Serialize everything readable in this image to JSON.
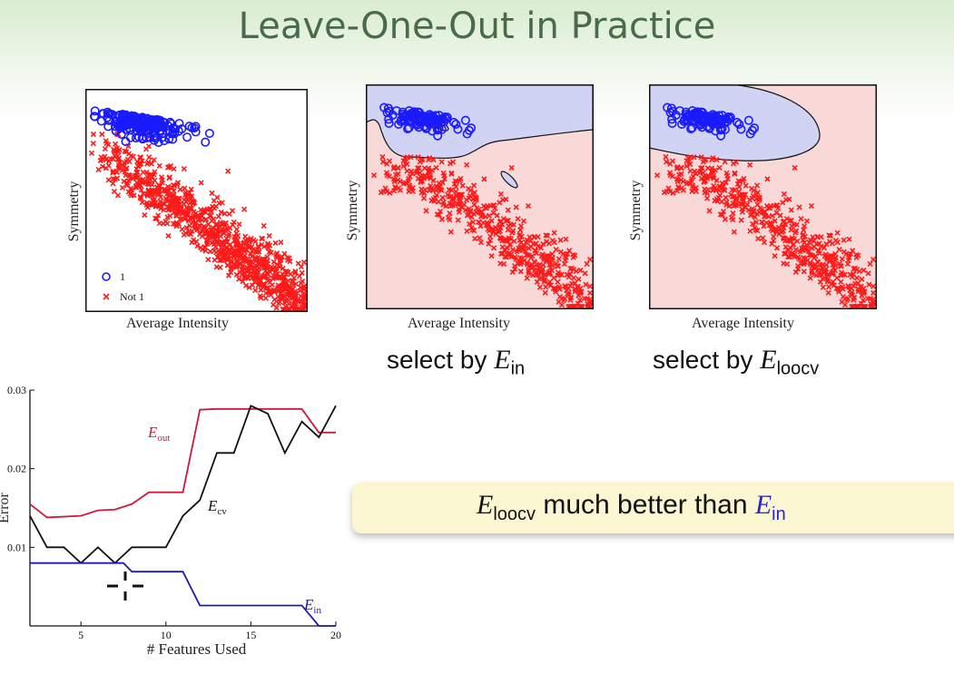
{
  "slide": {
    "title": "Leave-One-Out in Practice",
    "captions": {
      "ein": {
        "prefix": "select by ",
        "var": "E",
        "sub": "in"
      },
      "eloocv": {
        "prefix": "select by ",
        "var": "E",
        "sub": "loocv"
      }
    },
    "callout": {
      "var1": "E",
      "sub1": "loocv",
      "middle": " much better than ",
      "var2": "E",
      "sub2": "in"
    },
    "play_icon": "play-icon"
  },
  "colors": {
    "class1": "#1a1aff",
    "not1": "#ff1a1a",
    "region_blue": "#d0d3f4",
    "region_red": "#f9d8d8",
    "eout": "#cc1a3a",
    "ecv": "#111111",
    "ein": "#1a1ab4"
  },
  "scatter_panels": [
    {
      "id": "raw",
      "xlabel": "Average Intensity",
      "ylabel": "Symmetry",
      "legend": [
        {
          "symbol": "circle",
          "label": "1"
        },
        {
          "symbol": "x",
          "label": "Not 1"
        }
      ]
    },
    {
      "id": "select-ein",
      "xlabel": "Average Intensity",
      "ylabel": "Symmetry"
    },
    {
      "id": "select-eloocv",
      "xlabel": "Average Intensity",
      "ylabel": "Symmetry"
    }
  ],
  "chart_data": {
    "type": "line",
    "title": "",
    "xlabel": "# Features Used",
    "ylabel": "Error",
    "xlim": [
      2,
      20
    ],
    "ylim": [
      0,
      0.03
    ],
    "xticks": [
      5,
      10,
      15,
      20
    ],
    "yticks": [
      0.01,
      0.02,
      0.03
    ],
    "ytick_labels": [
      "0.01",
      "0.02",
      "0.03"
    ],
    "series": [
      {
        "name": "E_out",
        "label_main": "E",
        "label_sub": "out",
        "color": "#cc1a3a",
        "x": [
          2,
          3,
          5,
          6,
          7,
          8,
          9,
          10,
          11,
          12,
          13,
          14,
          15,
          16,
          17,
          18,
          19,
          20
        ],
        "y": [
          0.0155,
          0.0138,
          0.014,
          0.0147,
          0.0148,
          0.0155,
          0.017,
          0.017,
          0.017,
          0.0275,
          0.0276,
          0.0276,
          0.0276,
          0.0276,
          0.0276,
          0.0276,
          0.0246,
          0.0246
        ]
      },
      {
        "name": "E_cv",
        "label_main": "E",
        "label_sub": "cv",
        "color": "#111111",
        "x": [
          2,
          3,
          4,
          5,
          6,
          7,
          8,
          9,
          10,
          11,
          12,
          13,
          14,
          15,
          16,
          17,
          18,
          19,
          20
        ],
        "y": [
          0.014,
          0.01,
          0.01,
          0.008,
          0.01,
          0.008,
          0.01,
          0.01,
          0.01,
          0.014,
          0.016,
          0.022,
          0.022,
          0.028,
          0.027,
          0.022,
          0.026,
          0.024,
          0.028
        ]
      },
      {
        "name": "E_in",
        "label_main": "E",
        "label_sub": "in",
        "color": "#1a1ab4",
        "x": [
          2,
          7.5,
          8,
          11,
          12,
          17,
          18,
          19,
          20
        ],
        "y": [
          0.008,
          0.008,
          0.0069,
          0.0069,
          0.0026,
          0.0026,
          0.0026,
          0.0,
          0.0
        ]
      }
    ]
  }
}
